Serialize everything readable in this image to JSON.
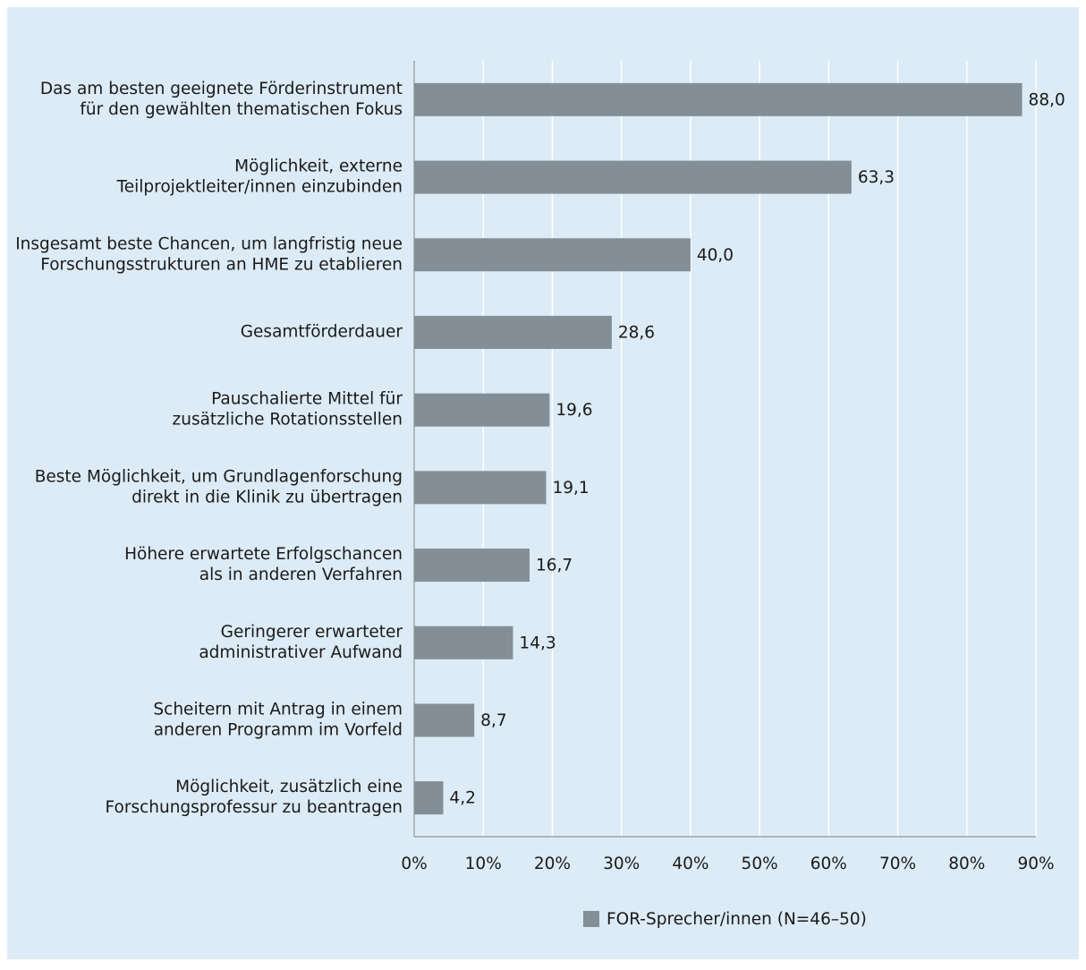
{
  "chart_data": {
    "type": "bar",
    "orientation": "horizontal",
    "categories": [
      [
        "Das am besten geeignete Förderinstrument",
        "für den gewählten thematischen Fokus"
      ],
      [
        "Möglichkeit, externe",
        "Teilprojektleiter/innen einzubinden"
      ],
      [
        "Insgesamt beste Chancen, um langfristig neue",
        "Forschungsstrukturen an HME zu etablieren"
      ],
      [
        "Gesamtförderdauer"
      ],
      [
        "Pauschalierte Mittel für",
        "zusätzliche Rotationsstellen"
      ],
      [
        "Beste Möglichkeit, um Grundlagenforschung",
        "direkt in die Klinik zu übertragen"
      ],
      [
        "Höhere erwartete Erfolgschancen",
        "als in anderen Verfahren"
      ],
      [
        "Geringerer erwarteter",
        "administrativer Aufwand"
      ],
      [
        "Scheitern mit Antrag in einem",
        "anderen Programm im Vorfeld"
      ],
      [
        "Möglichkeit, zusätzlich eine",
        "Forschungsprofessur zu beantragen"
      ]
    ],
    "series": [
      {
        "name": "FOR-Sprecher/innen (N=46–50)",
        "color": "#838e96",
        "values": [
          88.0,
          63.3,
          40.0,
          28.6,
          19.6,
          19.1,
          16.7,
          14.3,
          8.7,
          4.2
        ],
        "value_labels": [
          "88,0",
          "63,3",
          "40,0",
          "28,6",
          "19,6",
          "19,1",
          "16,7",
          "14,3",
          "8,7",
          "4,2"
        ]
      }
    ],
    "xlim": [
      0,
      90
    ],
    "xticks": [
      {
        "value": 0,
        "label": "0%"
      },
      {
        "value": 10,
        "label": "10%"
      },
      {
        "value": 20,
        "label": "20%"
      },
      {
        "value": 30,
        "label": "30%"
      },
      {
        "value": 40,
        "label": "40%"
      },
      {
        "value": 50,
        "label": "50%"
      },
      {
        "value": 60,
        "label": "60%"
      },
      {
        "value": 70,
        "label": "70%"
      },
      {
        "value": 80,
        "label": "80%"
      },
      {
        "value": 90,
        "label": "90%"
      }
    ],
    "grid": true,
    "legend": "bottom"
  }
}
